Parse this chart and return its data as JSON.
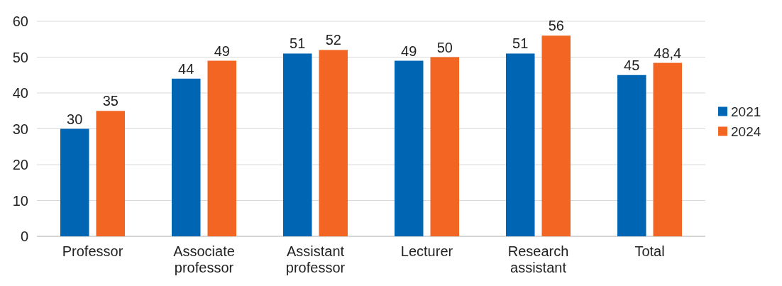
{
  "chart_data": {
    "type": "bar",
    "categories": [
      "Professor",
      "Associate professor",
      "Assistant professor",
      "Lecturer",
      "Research assistant",
      "Total"
    ],
    "series": [
      {
        "name": "2021",
        "color": "#0066b3",
        "values": [
          30,
          44,
          51,
          49,
          51,
          45
        ],
        "value_labels": [
          "30",
          "44",
          "51",
          "49",
          "51",
          "45"
        ]
      },
      {
        "name": "2024",
        "color": "#f26522",
        "values": [
          35,
          49,
          52,
          50,
          56,
          48.4
        ],
        "value_labels": [
          "35",
          "49",
          "52",
          "50",
          "56",
          "48,4"
        ]
      }
    ],
    "ylim": [
      0,
      60
    ],
    "yticks": [
      0,
      10,
      20,
      30,
      40,
      50,
      60
    ],
    "grid": "y",
    "legend": "right"
  }
}
